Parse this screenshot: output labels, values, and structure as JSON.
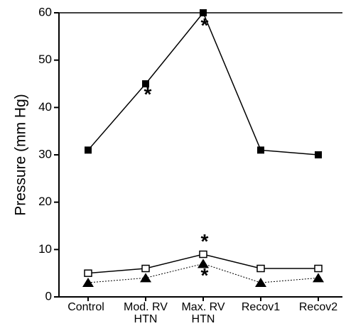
{
  "chart_data": {
    "type": "line",
    "y_label": "Pressure (mm Hg)",
    "categories": [
      "Control",
      "Mod. RV\nHTN",
      "Max. RV\nHTN",
      "Recov1",
      "Recov2"
    ],
    "series": [
      {
        "color": "#000000",
        "marker": "filled-square",
        "line": "solid",
        "values": [
          31,
          45,
          60,
          31,
          30
        ]
      },
      {
        "color": "#000000",
        "marker": "open-square",
        "line": "solid",
        "values": [
          5,
          6,
          9,
          6,
          6
        ]
      },
      {
        "color": "#000000",
        "marker": "filled-triangle",
        "line": "dotted",
        "values": [
          3,
          4,
          7,
          3,
          4
        ]
      }
    ],
    "annotations": [
      "*",
      "*",
      "*",
      "*"
    ],
    "ylim": [
      0,
      60
    ],
    "yticks": [
      0,
      10,
      20,
      30,
      40,
      50,
      60
    ]
  }
}
